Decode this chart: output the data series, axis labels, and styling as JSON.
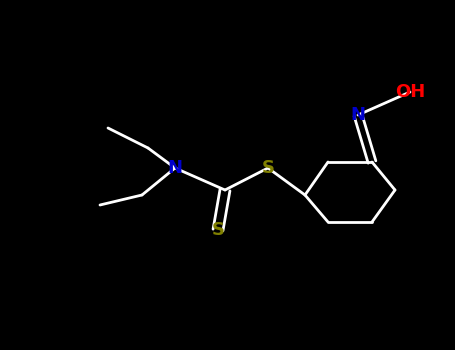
{
  "background_color": "#000000",
  "bond_color": "#ffffff",
  "N_color": "#0000cd",
  "S_color": "#808000",
  "O_color": "#ff0000",
  "bond_width": 2.0,
  "figsize": [
    4.55,
    3.5
  ],
  "dpi": 100,
  "N_amine_label": {
    "text": "N",
    "color": "#0000cd",
    "fontsize": 13
  },
  "S_thio_label": {
    "text": "S",
    "color": "#808000",
    "fontsize": 13
  },
  "S_ester_label": {
    "text": "S",
    "color": "#808000",
    "fontsize": 13
  },
  "N_oxime_label": {
    "text": "N",
    "color": "#0000cd",
    "fontsize": 13
  },
  "O_oxime_label": {
    "text": "OH",
    "color": "#ff0000",
    "fontsize": 13
  }
}
